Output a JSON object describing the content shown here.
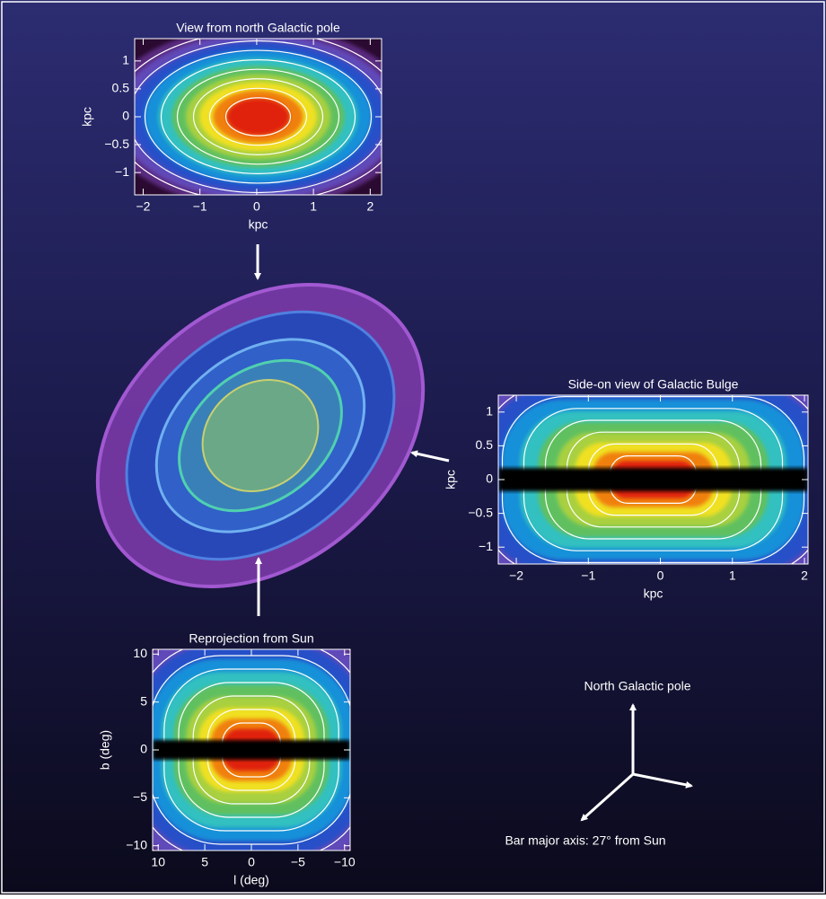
{
  "panels": [
    {
      "title": "View from north Galactic pole",
      "xlabel": "kpc",
      "ylabel": "kpc",
      "xlim": [
        -2.15,
        2.2
      ],
      "ylim": [
        -1.4,
        1.4
      ],
      "xticks": [
        {
          "value": -2,
          "label": "−2"
        },
        {
          "value": -1,
          "label": "−1"
        },
        0,
        1,
        2
      ],
      "yticks": [
        {
          "value": -1,
          "label": "−1"
        },
        {
          "value": -0.5,
          "label": "−0.5"
        },
        0,
        0.5,
        1
      ]
    },
    {
      "title": "Side-on view of Galactic Bulge",
      "xlabel": "kpc",
      "ylabel": "kpc",
      "xlim": [
        -2.25,
        2.05
      ],
      "ylim": [
        -1.25,
        1.25
      ],
      "xticks": [
        {
          "value": -2,
          "label": "−2"
        },
        {
          "value": -1,
          "label": "−1"
        },
        0,
        1,
        2
      ],
      "yticks": [
        {
          "value": -1,
          "label": "−1"
        },
        {
          "value": -0.5,
          "label": "−0.5"
        },
        0,
        0.5,
        1
      ]
    },
    {
      "title": "Reprojection from Sun",
      "xlabel": "l (deg)",
      "ylabel": "b (deg)",
      "xlim": [
        10.6,
        -10.6
      ],
      "ylim": [
        -10.5,
        10.5
      ],
      "xticks": [
        10,
        5,
        0,
        {
          "value": -5,
          "label": "−5"
        },
        {
          "value": -10,
          "label": "−10"
        }
      ],
      "yticks": [
        {
          "value": -10,
          "label": "−10"
        },
        {
          "value": -5,
          "label": "−5"
        },
        0,
        5,
        10
      ]
    }
  ],
  "axes_diagram": {
    "up_label": "North Galactic pole",
    "bar_label": "Bar major axis: 27° from Sun"
  }
}
